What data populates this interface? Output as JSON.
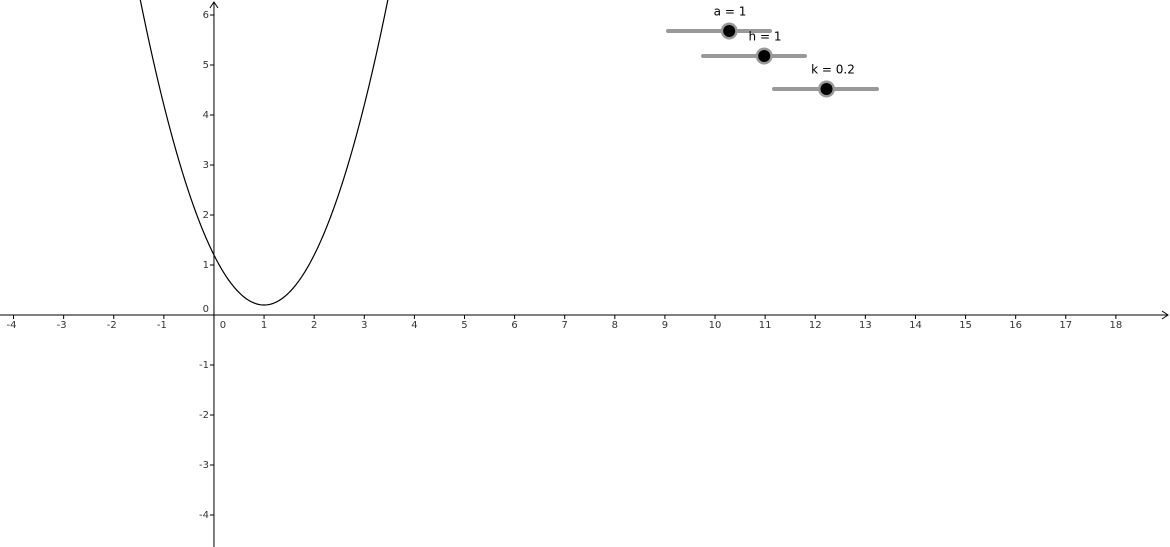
{
  "chart_data": {
    "type": "function",
    "xlim": [
      -4.27,
      19.08
    ],
    "ylim": [
      -4.64,
      6.3
    ],
    "xticks": [
      -4,
      -3,
      -2,
      -1,
      0,
      1,
      2,
      3,
      4,
      5,
      6,
      7,
      8,
      9,
      10,
      11,
      12,
      13,
      14,
      15,
      16,
      17,
      18
    ],
    "yticks": [
      -4,
      -3,
      -2,
      -1,
      0,
      1,
      2,
      3,
      4,
      5,
      6
    ],
    "sliders": [
      {
        "name": "a",
        "label": "a = 1",
        "value": 1
      },
      {
        "name": "h",
        "label": "h = 1",
        "value": 1
      },
      {
        "name": "k",
        "label": "k = 0.2",
        "value": 0.2
      }
    ],
    "color": "#000000"
  }
}
